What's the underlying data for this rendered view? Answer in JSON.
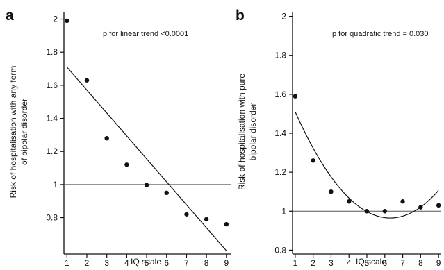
{
  "chart_data": [
    {
      "type": "scatter",
      "panel_label": "a",
      "annotation": "p for linear trend <0.0001",
      "xlabel": "IQ scale",
      "ylabel_lines": [
        "Risk of hospitalisation with any form",
        "of bipolar disorder"
      ],
      "x": [
        1,
        2,
        3,
        4,
        5,
        6,
        7,
        8,
        9
      ],
      "values": [
        1.99,
        1.63,
        1.28,
        1.12,
        0.997,
        0.95,
        0.82,
        0.79,
        0.76
      ],
      "xlim": [
        0.85,
        9.25
      ],
      "ylim": [
        0.58,
        2.04
      ],
      "xticks": [
        "1",
        "2",
        "3",
        "4",
        "5",
        "6",
        "7",
        "8",
        "9"
      ],
      "yticks": [
        "0.8",
        "1",
        "1.2",
        "1.4",
        "1.6",
        "1.8",
        "2"
      ],
      "ytick_values": [
        0.8,
        1,
        1.2,
        1.4,
        1.6,
        1.8,
        2
      ],
      "reference_line": 1,
      "fit": {
        "kind": "linear",
        "x_start": 1,
        "y_start": 1.71,
        "x_end": 9,
        "y_end": 0.6
      }
    },
    {
      "type": "scatter",
      "panel_label": "b",
      "annotation": "p for quadratic trend = 0.030",
      "xlabel": "IQ scale",
      "ylabel_lines": [
        "Risk of hospitalisation with pure",
        "bipolar disorder"
      ],
      "x": [
        1,
        2,
        3,
        4,
        5,
        6,
        7,
        8,
        9
      ],
      "values": [
        1.59,
        1.26,
        1.1,
        1.05,
        1.0,
        1.0,
        1.05,
        1.02,
        1.03
      ],
      "xlim": [
        0.85,
        9.15
      ],
      "ylim": [
        0.78,
        2.02
      ],
      "xticks": [
        "1",
        "2",
        "3",
        "4",
        "5",
        "6",
        "7",
        "8",
        "9"
      ],
      "yticks": [
        "0.8",
        "1",
        "1.2",
        "1.4",
        "1.6",
        "1.8",
        "2"
      ],
      "ytick_values": [
        0.8,
        1,
        1.2,
        1.4,
        1.6,
        1.8,
        2
      ],
      "reference_line": 1,
      "fit": {
        "kind": "quadratic",
        "x_vertex": 6.3,
        "y_vertex": 0.965,
        "x_start": 1,
        "y_start": 1.51,
        "x_end": 9
      }
    }
  ]
}
